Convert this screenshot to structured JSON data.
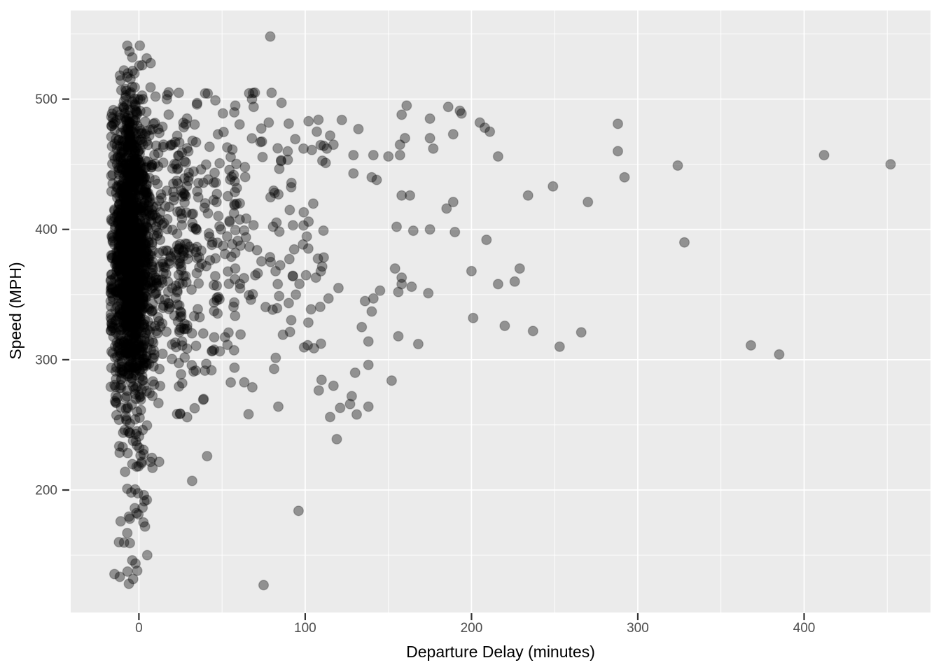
{
  "chart_data": {
    "type": "scatter",
    "title": "",
    "xlabel": "Departure Delay (minutes)",
    "ylabel": "Speed (MPH)",
    "x_ticks": [
      0,
      100,
      200,
      300,
      400
    ],
    "x_tick_labels": [
      "0",
      "100",
      "200",
      "300",
      "400"
    ],
    "y_ticks": [
      200,
      300,
      400,
      500
    ],
    "y_tick_labels": [
      "200",
      "300",
      "400",
      "500"
    ],
    "x_minor_gridlines": [
      50,
      150,
      250,
      350,
      450
    ],
    "y_minor_gridlines": [
      150,
      250,
      350,
      450,
      550
    ],
    "xlim": [
      -41,
      476
    ],
    "ylim": [
      106,
      568
    ],
    "grid": true,
    "legend_position": "none",
    "theme": {
      "panel_background": "#EBEBEB",
      "gridline_color": "#FFFFFF",
      "tick_mark_color": "#333333",
      "tick_label_color": "#4D4D4D",
      "axis_title_color": "#000000",
      "point_fill": "rgba(0,0,0,0.38)",
      "point_stroke": "rgba(0,0,0,0.22)"
    },
    "point_radius": 6.9,
    "point_stroke_width": 1.4,
    "points": [
      [
        79,
        548
      ],
      [
        -7,
        541
      ],
      [
        -4,
        532
      ],
      [
        2,
        526
      ],
      [
        -9,
        522
      ],
      [
        -7,
        517
      ],
      [
        7,
        509
      ],
      [
        10,
        502
      ],
      [
        17,
        503
      ],
      [
        35,
        497
      ],
      [
        46,
        499
      ],
      [
        58,
        495
      ],
      [
        68,
        500
      ],
      [
        69,
        494
      ],
      [
        99,
        462
      ],
      [
        102,
        483
      ],
      [
        104,
        461
      ],
      [
        107,
        475
      ],
      [
        113,
        462
      ],
      [
        115,
        472
      ],
      [
        117,
        465
      ],
      [
        122,
        484
      ],
      [
        129,
        457
      ],
      [
        132,
        477
      ],
      [
        141,
        457
      ],
      [
        150,
        456
      ],
      [
        157,
        457
      ],
      [
        157,
        465
      ],
      [
        158,
        488
      ],
      [
        160,
        470
      ],
      [
        161,
        495
      ],
      [
        175,
        485
      ],
      [
        175,
        470
      ],
      [
        177,
        462
      ],
      [
        186,
        494
      ],
      [
        189,
        473
      ],
      [
        193,
        491
      ],
      [
        194,
        489
      ],
      [
        205,
        482
      ],
      [
        208,
        478
      ],
      [
        211,
        475
      ],
      [
        216,
        456
      ],
      [
        229,
        370
      ],
      [
        234,
        426
      ],
      [
        249,
        433
      ],
      [
        270,
        421
      ],
      [
        288,
        481
      ],
      [
        288,
        460
      ],
      [
        292,
        440
      ],
      [
        324,
        449
      ],
      [
        328,
        390
      ],
      [
        412,
        457
      ],
      [
        452,
        450
      ],
      [
        368,
        311
      ],
      [
        385,
        304
      ],
      [
        99,
        403
      ],
      [
        102,
        406
      ],
      [
        155,
        402
      ],
      [
        165,
        399
      ],
      [
        175,
        400
      ],
      [
        190,
        398
      ],
      [
        209,
        392
      ],
      [
        200,
        368
      ],
      [
        216,
        358
      ],
      [
        226,
        360
      ],
      [
        201,
        332
      ],
      [
        220,
        326
      ],
      [
        237,
        322
      ],
      [
        253,
        310
      ],
      [
        266,
        321
      ],
      [
        120,
        355
      ],
      [
        114,
        347
      ],
      [
        136,
        345
      ],
      [
        141,
        347
      ],
      [
        140,
        337
      ],
      [
        134,
        325
      ],
      [
        138,
        314
      ],
      [
        156,
        318
      ],
      [
        168,
        312
      ],
      [
        154,
        370
      ],
      [
        156,
        352
      ],
      [
        158,
        363
      ],
      [
        158,
        358
      ],
      [
        164,
        356
      ],
      [
        174,
        351
      ],
      [
        145,
        353
      ],
      [
        158,
        426
      ],
      [
        163,
        426
      ],
      [
        185,
        416
      ],
      [
        189,
        421
      ],
      [
        140,
        440
      ],
      [
        143,
        438
      ],
      [
        129,
        443
      ],
      [
        152,
        284
      ],
      [
        130,
        290
      ],
      [
        138,
        296
      ],
      [
        117,
        280
      ],
      [
        128,
        272
      ],
      [
        127,
        266
      ],
      [
        121,
        263
      ],
      [
        138,
        264
      ],
      [
        131,
        258
      ],
      [
        115,
        256
      ],
      [
        119,
        239
      ],
      [
        96,
        184
      ],
      [
        75,
        127
      ],
      [
        32,
        207
      ],
      [
        41,
        226
      ],
      [
        -6,
        128
      ],
      [
        -1,
        138
      ],
      [
        -11,
        176
      ],
      [
        -7,
        167
      ],
      [
        -12,
        160
      ],
      [
        -4,
        146
      ],
      [
        5,
        150
      ]
    ],
    "dense_cluster": {
      "description": "Unresolvable dense mass of overplotted points near zero departure delay; reproduced with seeded random bands matching the visible distribution.",
      "seed": 1337,
      "bands": [
        {
          "name": "core-column",
          "n": 1150,
          "delay": {
            "dist": "normal",
            "mean": -5.5,
            "sd": 5.5,
            "min": -17,
            "max": 10
          },
          "speed": {
            "dist": "triangular",
            "min": 255,
            "max": 520
          }
        },
        {
          "name": "right-spread",
          "n": 560,
          "delay": {
            "dist": "exponential",
            "offset": -8,
            "scale": 16,
            "min": -13,
            "max": 58
          },
          "speed": {
            "dist": "triangular",
            "min": 250,
            "max": 518
          }
        },
        {
          "name": "mid-tail",
          "n": 240,
          "delay": {
            "dist": "power",
            "offset": 23,
            "range": 90,
            "exp": 1.7
          },
          "speed": {
            "dist": "normal",
            "mean": 388,
            "sd": 60,
            "min": 258,
            "max": 505
          }
        },
        {
          "name": "low-speed-tail",
          "n": 58,
          "delay": {
            "dist": "normal",
            "mean": -3,
            "sd": 6,
            "min": -15,
            "max": 26
          },
          "speed": {
            "dist": "power-down",
            "top": 256,
            "range": 126,
            "exp": 1.5,
            "min": 130
          }
        },
        {
          "name": "high-speed-crown",
          "n": 12,
          "delay": {
            "dist": "normal",
            "mean": -4,
            "sd": 6,
            "min": -12,
            "max": 15
          },
          "speed": {
            "dist": "uniform",
            "min": 505,
            "max": 543
          }
        }
      ]
    }
  }
}
